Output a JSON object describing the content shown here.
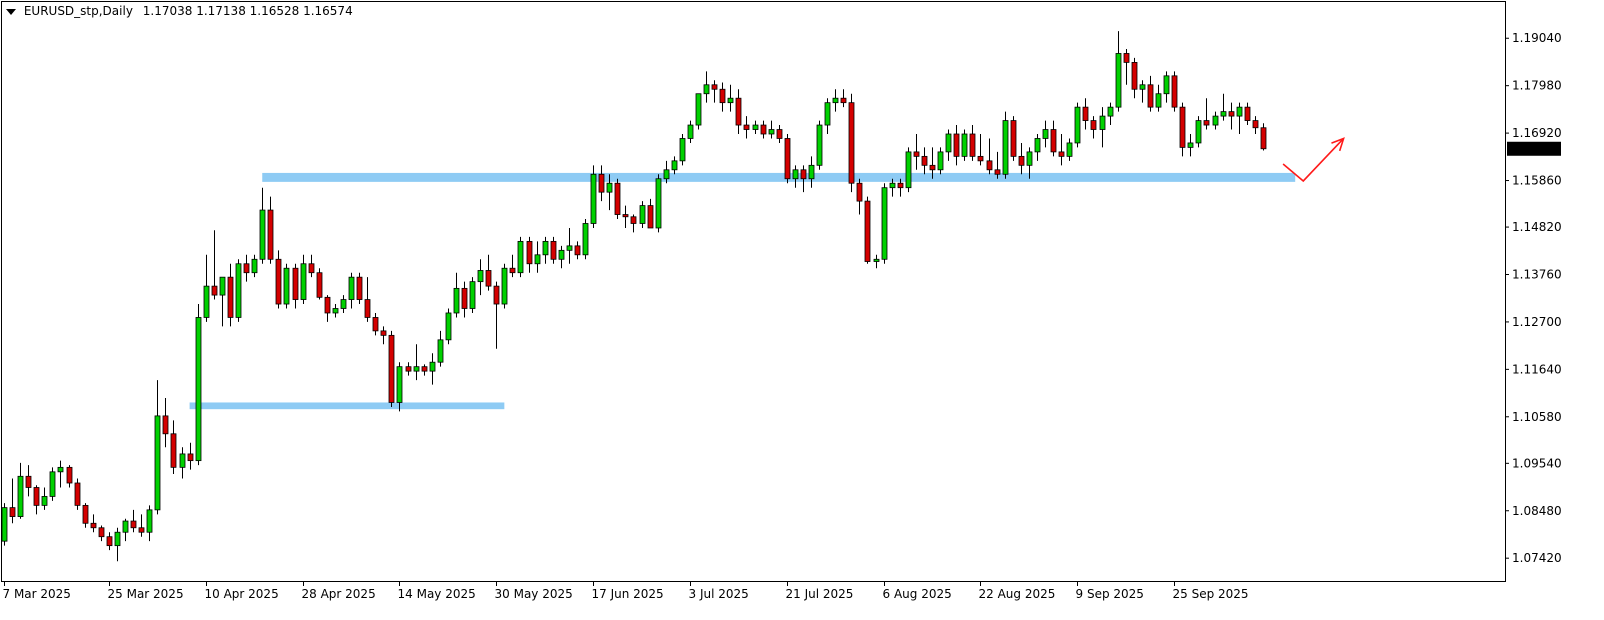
{
  "header": {
    "symbol": "EURUSD_stp,Daily",
    "ohlc": "1.17038 1.17138 1.16528 1.16574"
  },
  "colors": {
    "bull": "#00d100",
    "bear": "#d40000",
    "wick": "#000000",
    "zone": "#8ecbf4",
    "arrow": "#ff1a1a",
    "price_box": "#000000"
  },
  "current_price_label": "1.16574",
  "chart_data": {
    "type": "candlestick",
    "title": "",
    "xlabel": "",
    "ylabel": "",
    "ylim": [
      1.0691,
      1.1985
    ],
    "y_ticks": [
      "1.19040",
      "1.17980",
      "1.16920",
      "1.15860",
      "1.14820",
      "1.13760",
      "1.12700",
      "1.11640",
      "1.10580",
      "1.09540",
      "1.08480",
      "1.07420"
    ],
    "x_labels": [
      {
        "label": "7 Mar 2025",
        "index": 0
      },
      {
        "label": "25 Mar 2025",
        "index": 13
      },
      {
        "label": "10 Apr 2025",
        "index": 25
      },
      {
        "label": "28 Apr 2025",
        "index": 37
      },
      {
        "label": "14 May 2025",
        "index": 49
      },
      {
        "label": "30 May 2025",
        "index": 61
      },
      {
        "label": "17 Jun 2025",
        "index": 73
      },
      {
        "label": "3 Jul 2025",
        "index": 85
      },
      {
        "label": "21 Jul 2025",
        "index": 97
      },
      {
        "label": "6 Aug 2025",
        "index": 109
      },
      {
        "label": "22 Aug 2025",
        "index": 121
      },
      {
        "label": "9 Sep 2025",
        "index": 133
      },
      {
        "label": "25 Sep 2025",
        "index": 145
      }
    ],
    "candles": [
      {
        "o": 1.078,
        "h": 1.0865,
        "l": 1.077,
        "c": 1.0855
      },
      {
        "o": 1.0855,
        "h": 1.092,
        "l": 1.082,
        "c": 1.0835
      },
      {
        "o": 1.0835,
        "h": 1.0955,
        "l": 1.083,
        "c": 1.0925
      },
      {
        "o": 1.0925,
        "h": 1.095,
        "l": 1.088,
        "c": 1.09
      },
      {
        "o": 1.09,
        "h": 1.0905,
        "l": 1.084,
        "c": 1.086
      },
      {
        "o": 1.086,
        "h": 1.09,
        "l": 1.085,
        "c": 1.088
      },
      {
        "o": 1.088,
        "h": 1.0945,
        "l": 1.087,
        "c": 1.0935
      },
      {
        "o": 1.0935,
        "h": 1.096,
        "l": 1.09,
        "c": 1.0945
      },
      {
        "o": 1.0945,
        "h": 1.095,
        "l": 1.09,
        "c": 1.091
      },
      {
        "o": 1.091,
        "h": 1.092,
        "l": 1.085,
        "c": 1.086
      },
      {
        "o": 1.086,
        "h": 1.0865,
        "l": 1.081,
        "c": 1.082
      },
      {
        "o": 1.082,
        "h": 1.084,
        "l": 1.08,
        "c": 1.081
      },
      {
        "o": 1.081,
        "h": 1.0815,
        "l": 1.078,
        "c": 1.079
      },
      {
        "o": 1.079,
        "h": 1.08,
        "l": 1.076,
        "c": 1.077
      },
      {
        "o": 1.077,
        "h": 1.081,
        "l": 1.0735,
        "c": 1.08
      },
      {
        "o": 1.08,
        "h": 1.083,
        "l": 1.078,
        "c": 1.0825
      },
      {
        "o": 1.0825,
        "h": 1.085,
        "l": 1.08,
        "c": 1.081
      },
      {
        "o": 1.081,
        "h": 1.084,
        "l": 1.079,
        "c": 1.08
      },
      {
        "o": 1.08,
        "h": 1.086,
        "l": 1.078,
        "c": 1.085
      },
      {
        "o": 1.085,
        "h": 1.114,
        "l": 1.084,
        "c": 1.106
      },
      {
        "o": 1.106,
        "h": 1.11,
        "l": 1.099,
        "c": 1.102
      },
      {
        "o": 1.102,
        "h": 1.105,
        "l": 1.093,
        "c": 1.0945
      },
      {
        "o": 1.0945,
        "h": 1.099,
        "l": 1.092,
        "c": 1.0975
      },
      {
        "o": 1.0975,
        "h": 1.1,
        "l": 1.094,
        "c": 1.096
      },
      {
        "o": 1.096,
        "h": 1.131,
        "l": 1.095,
        "c": 1.128
      },
      {
        "o": 1.128,
        "h": 1.142,
        "l": 1.127,
        "c": 1.135
      },
      {
        "o": 1.135,
        "h": 1.1475,
        "l": 1.132,
        "c": 1.133
      },
      {
        "o": 1.133,
        "h": 1.137,
        "l": 1.126,
        "c": 1.137
      },
      {
        "o": 1.137,
        "h": 1.14,
        "l": 1.126,
        "c": 1.128
      },
      {
        "o": 1.128,
        "h": 1.141,
        "l": 1.127,
        "c": 1.14
      },
      {
        "o": 1.14,
        "h": 1.142,
        "l": 1.136,
        "c": 1.138
      },
      {
        "o": 1.138,
        "h": 1.142,
        "l": 1.137,
        "c": 1.141
      },
      {
        "o": 1.141,
        "h": 1.157,
        "l": 1.14,
        "c": 1.152
      },
      {
        "o": 1.152,
        "h": 1.155,
        "l": 1.14,
        "c": 1.141
      },
      {
        "o": 1.141,
        "h": 1.143,
        "l": 1.13,
        "c": 1.131
      },
      {
        "o": 1.131,
        "h": 1.14,
        "l": 1.13,
        "c": 1.139
      },
      {
        "o": 1.139,
        "h": 1.14,
        "l": 1.13,
        "c": 1.132
      },
      {
        "o": 1.132,
        "h": 1.142,
        "l": 1.131,
        "c": 1.14
      },
      {
        "o": 1.14,
        "h": 1.142,
        "l": 1.137,
        "c": 1.138
      },
      {
        "o": 1.138,
        "h": 1.139,
        "l": 1.132,
        "c": 1.1325
      },
      {
        "o": 1.1325,
        "h": 1.133,
        "l": 1.127,
        "c": 1.129
      },
      {
        "o": 1.129,
        "h": 1.131,
        "l": 1.128,
        "c": 1.13
      },
      {
        "o": 1.13,
        "h": 1.133,
        "l": 1.129,
        "c": 1.132
      },
      {
        "o": 1.132,
        "h": 1.138,
        "l": 1.13,
        "c": 1.137
      },
      {
        "o": 1.137,
        "h": 1.138,
        "l": 1.131,
        "c": 1.132
      },
      {
        "o": 1.132,
        "h": 1.137,
        "l": 1.127,
        "c": 1.128
      },
      {
        "o": 1.128,
        "h": 1.129,
        "l": 1.124,
        "c": 1.125
      },
      {
        "o": 1.125,
        "h": 1.126,
        "l": 1.122,
        "c": 1.124
      },
      {
        "o": 1.124,
        "h": 1.125,
        "l": 1.108,
        "c": 1.109
      },
      {
        "o": 1.109,
        "h": 1.118,
        "l": 1.107,
        "c": 1.117
      },
      {
        "o": 1.117,
        "h": 1.118,
        "l": 1.115,
        "c": 1.116
      },
      {
        "o": 1.116,
        "h": 1.122,
        "l": 1.114,
        "c": 1.117
      },
      {
        "o": 1.117,
        "h": 1.1175,
        "l": 1.115,
        "c": 1.116
      },
      {
        "o": 1.116,
        "h": 1.12,
        "l": 1.113,
        "c": 1.118
      },
      {
        "o": 1.118,
        "h": 1.125,
        "l": 1.117,
        "c": 1.123
      },
      {
        "o": 1.123,
        "h": 1.13,
        "l": 1.122,
        "c": 1.129
      },
      {
        "o": 1.129,
        "h": 1.138,
        "l": 1.128,
        "c": 1.1345
      },
      {
        "o": 1.1345,
        "h": 1.136,
        "l": 1.128,
        "c": 1.13
      },
      {
        "o": 1.13,
        "h": 1.137,
        "l": 1.129,
        "c": 1.136
      },
      {
        "o": 1.136,
        "h": 1.141,
        "l": 1.133,
        "c": 1.1385
      },
      {
        "o": 1.1385,
        "h": 1.142,
        "l": 1.134,
        "c": 1.135
      },
      {
        "o": 1.135,
        "h": 1.136,
        "l": 1.121,
        "c": 1.131
      },
      {
        "o": 1.131,
        "h": 1.14,
        "l": 1.13,
        "c": 1.139
      },
      {
        "o": 1.139,
        "h": 1.142,
        "l": 1.137,
        "c": 1.138
      },
      {
        "o": 1.138,
        "h": 1.146,
        "l": 1.137,
        "c": 1.145
      },
      {
        "o": 1.145,
        "h": 1.146,
        "l": 1.138,
        "c": 1.14
      },
      {
        "o": 1.14,
        "h": 1.145,
        "l": 1.138,
        "c": 1.142
      },
      {
        "o": 1.142,
        "h": 1.146,
        "l": 1.14,
        "c": 1.145
      },
      {
        "o": 1.145,
        "h": 1.146,
        "l": 1.14,
        "c": 1.141
      },
      {
        "o": 1.141,
        "h": 1.144,
        "l": 1.139,
        "c": 1.143
      },
      {
        "o": 1.143,
        "h": 1.148,
        "l": 1.14,
        "c": 1.144
      },
      {
        "o": 1.144,
        "h": 1.145,
        "l": 1.141,
        "c": 1.142
      },
      {
        "o": 1.142,
        "h": 1.15,
        "l": 1.141,
        "c": 1.149
      },
      {
        "o": 1.149,
        "h": 1.162,
        "l": 1.148,
        "c": 1.16
      },
      {
        "o": 1.16,
        "h": 1.162,
        "l": 1.154,
        "c": 1.156
      },
      {
        "o": 1.156,
        "h": 1.16,
        "l": 1.152,
        "c": 1.158
      },
      {
        "o": 1.158,
        "h": 1.159,
        "l": 1.15,
        "c": 1.151
      },
      {
        "o": 1.151,
        "h": 1.153,
        "l": 1.148,
        "c": 1.1505
      },
      {
        "o": 1.1505,
        "h": 1.151,
        "l": 1.147,
        "c": 1.149
      },
      {
        "o": 1.149,
        "h": 1.154,
        "l": 1.148,
        "c": 1.153
      },
      {
        "o": 1.153,
        "h": 1.1545,
        "l": 1.1485,
        "c": 1.148
      },
      {
        "o": 1.148,
        "h": 1.16,
        "l": 1.147,
        "c": 1.159
      },
      {
        "o": 1.159,
        "h": 1.163,
        "l": 1.158,
        "c": 1.161
      },
      {
        "o": 1.161,
        "h": 1.164,
        "l": 1.16,
        "c": 1.163
      },
      {
        "o": 1.163,
        "h": 1.169,
        "l": 1.162,
        "c": 1.168
      },
      {
        "o": 1.168,
        "h": 1.172,
        "l": 1.167,
        "c": 1.171
      },
      {
        "o": 1.171,
        "h": 1.178,
        "l": 1.17,
        "c": 1.178
      },
      {
        "o": 1.178,
        "h": 1.183,
        "l": 1.176,
        "c": 1.18
      },
      {
        "o": 1.18,
        "h": 1.181,
        "l": 1.176,
        "c": 1.179
      },
      {
        "o": 1.179,
        "h": 1.1805,
        "l": 1.174,
        "c": 1.176
      },
      {
        "o": 1.176,
        "h": 1.18,
        "l": 1.174,
        "c": 1.177
      },
      {
        "o": 1.177,
        "h": 1.179,
        "l": 1.169,
        "c": 1.171
      },
      {
        "o": 1.171,
        "h": 1.173,
        "l": 1.168,
        "c": 1.17
      },
      {
        "o": 1.17,
        "h": 1.172,
        "l": 1.169,
        "c": 1.171
      },
      {
        "o": 1.171,
        "h": 1.172,
        "l": 1.168,
        "c": 1.169
      },
      {
        "o": 1.169,
        "h": 1.172,
        "l": 1.168,
        "c": 1.17
      },
      {
        "o": 1.17,
        "h": 1.171,
        "l": 1.167,
        "c": 1.168
      },
      {
        "o": 1.168,
        "h": 1.169,
        "l": 1.158,
        "c": 1.159
      },
      {
        "o": 1.159,
        "h": 1.162,
        "l": 1.157,
        "c": 1.161
      },
      {
        "o": 1.161,
        "h": 1.162,
        "l": 1.156,
        "c": 1.159
      },
      {
        "o": 1.159,
        "h": 1.164,
        "l": 1.157,
        "c": 1.162
      },
      {
        "o": 1.162,
        "h": 1.172,
        "l": 1.161,
        "c": 1.171
      },
      {
        "o": 1.171,
        "h": 1.177,
        "l": 1.169,
        "c": 1.176
      },
      {
        "o": 1.176,
        "h": 1.179,
        "l": 1.174,
        "c": 1.177
      },
      {
        "o": 1.177,
        "h": 1.179,
        "l": 1.175,
        "c": 1.176
      },
      {
        "o": 1.176,
        "h": 1.178,
        "l": 1.156,
        "c": 1.158
      },
      {
        "o": 1.158,
        "h": 1.159,
        "l": 1.151,
        "c": 1.154
      },
      {
        "o": 1.154,
        "h": 1.155,
        "l": 1.14,
        "c": 1.1405
      },
      {
        "o": 1.1405,
        "h": 1.142,
        "l": 1.139,
        "c": 1.141
      },
      {
        "o": 1.141,
        "h": 1.158,
        "l": 1.14,
        "c": 1.157
      },
      {
        "o": 1.157,
        "h": 1.159,
        "l": 1.155,
        "c": 1.158
      },
      {
        "o": 1.158,
        "h": 1.159,
        "l": 1.155,
        "c": 1.157
      },
      {
        "o": 1.157,
        "h": 1.166,
        "l": 1.156,
        "c": 1.165
      },
      {
        "o": 1.165,
        "h": 1.169,
        "l": 1.161,
        "c": 1.164
      },
      {
        "o": 1.164,
        "h": 1.166,
        "l": 1.16,
        "c": 1.162
      },
      {
        "o": 1.162,
        "h": 1.166,
        "l": 1.159,
        "c": 1.161
      },
      {
        "o": 1.161,
        "h": 1.166,
        "l": 1.16,
        "c": 1.165
      },
      {
        "o": 1.165,
        "h": 1.17,
        "l": 1.163,
        "c": 1.169
      },
      {
        "o": 1.169,
        "h": 1.171,
        "l": 1.162,
        "c": 1.164
      },
      {
        "o": 1.164,
        "h": 1.17,
        "l": 1.163,
        "c": 1.169
      },
      {
        "o": 1.169,
        "h": 1.171,
        "l": 1.163,
        "c": 1.164
      },
      {
        "o": 1.164,
        "h": 1.169,
        "l": 1.162,
        "c": 1.163
      },
      {
        "o": 1.163,
        "h": 1.168,
        "l": 1.16,
        "c": 1.161
      },
      {
        "o": 1.161,
        "h": 1.165,
        "l": 1.159,
        "c": 1.16
      },
      {
        "o": 1.16,
        "h": 1.174,
        "l": 1.159,
        "c": 1.172
      },
      {
        "o": 1.172,
        "h": 1.173,
        "l": 1.163,
        "c": 1.164
      },
      {
        "o": 1.164,
        "h": 1.167,
        "l": 1.16,
        "c": 1.162
      },
      {
        "o": 1.162,
        "h": 1.166,
        "l": 1.159,
        "c": 1.165
      },
      {
        "o": 1.165,
        "h": 1.169,
        "l": 1.163,
        "c": 1.168
      },
      {
        "o": 1.168,
        "h": 1.172,
        "l": 1.166,
        "c": 1.17
      },
      {
        "o": 1.17,
        "h": 1.172,
        "l": 1.164,
        "c": 1.165
      },
      {
        "o": 1.165,
        "h": 1.169,
        "l": 1.162,
        "c": 1.164
      },
      {
        "o": 1.164,
        "h": 1.168,
        "l": 1.163,
        "c": 1.167
      },
      {
        "o": 1.167,
        "h": 1.176,
        "l": 1.166,
        "c": 1.175
      },
      {
        "o": 1.175,
        "h": 1.177,
        "l": 1.17,
        "c": 1.172
      },
      {
        "o": 1.172,
        "h": 1.173,
        "l": 1.168,
        "c": 1.17
      },
      {
        "o": 1.17,
        "h": 1.175,
        "l": 1.166,
        "c": 1.173
      },
      {
        "o": 1.173,
        "h": 1.176,
        "l": 1.171,
        "c": 1.175
      },
      {
        "o": 1.175,
        "h": 1.192,
        "l": 1.174,
        "c": 1.187
      },
      {
        "o": 1.187,
        "h": 1.188,
        "l": 1.18,
        "c": 1.185
      },
      {
        "o": 1.185,
        "h": 1.186,
        "l": 1.177,
        "c": 1.179
      },
      {
        "o": 1.179,
        "h": 1.181,
        "l": 1.176,
        "c": 1.18
      },
      {
        "o": 1.18,
        "h": 1.182,
        "l": 1.174,
        "c": 1.175
      },
      {
        "o": 1.175,
        "h": 1.18,
        "l": 1.174,
        "c": 1.178
      },
      {
        "o": 1.178,
        "h": 1.183,
        "l": 1.176,
        "c": 1.182
      },
      {
        "o": 1.182,
        "h": 1.183,
        "l": 1.174,
        "c": 1.175
      },
      {
        "o": 1.175,
        "h": 1.176,
        "l": 1.164,
        "c": 1.166
      },
      {
        "o": 1.166,
        "h": 1.169,
        "l": 1.164,
        "c": 1.167
      },
      {
        "o": 1.167,
        "h": 1.173,
        "l": 1.166,
        "c": 1.172
      },
      {
        "o": 1.172,
        "h": 1.177,
        "l": 1.17,
        "c": 1.171
      },
      {
        "o": 1.171,
        "h": 1.174,
        "l": 1.17,
        "c": 1.173
      },
      {
        "o": 1.173,
        "h": 1.178,
        "l": 1.172,
        "c": 1.174
      },
      {
        "o": 1.174,
        "h": 1.176,
        "l": 1.17,
        "c": 1.173
      },
      {
        "o": 1.173,
        "h": 1.176,
        "l": 1.169,
        "c": 1.175
      },
      {
        "o": 1.175,
        "h": 1.176,
        "l": 1.171,
        "c": 1.172
      },
      {
        "o": 1.172,
        "h": 1.173,
        "l": 1.169,
        "c": 1.1704
      },
      {
        "o": 1.1704,
        "h": 1.1714,
        "l": 1.1653,
        "c": 1.1657
      }
    ],
    "zones": [
      {
        "from_index": 32,
        "to_index": 160,
        "top": 1.1603,
        "bottom": 1.1583
      },
      {
        "from_index": 23,
        "to_index": 62,
        "top": 1.109,
        "bottom": 1.1075
      }
    ],
    "projection_arrow": [
      {
        "index": 158.5,
        "price": 1.1623
      },
      {
        "index": 161,
        "price": 1.1585
      },
      {
        "index": 166,
        "price": 1.168
      }
    ]
  }
}
